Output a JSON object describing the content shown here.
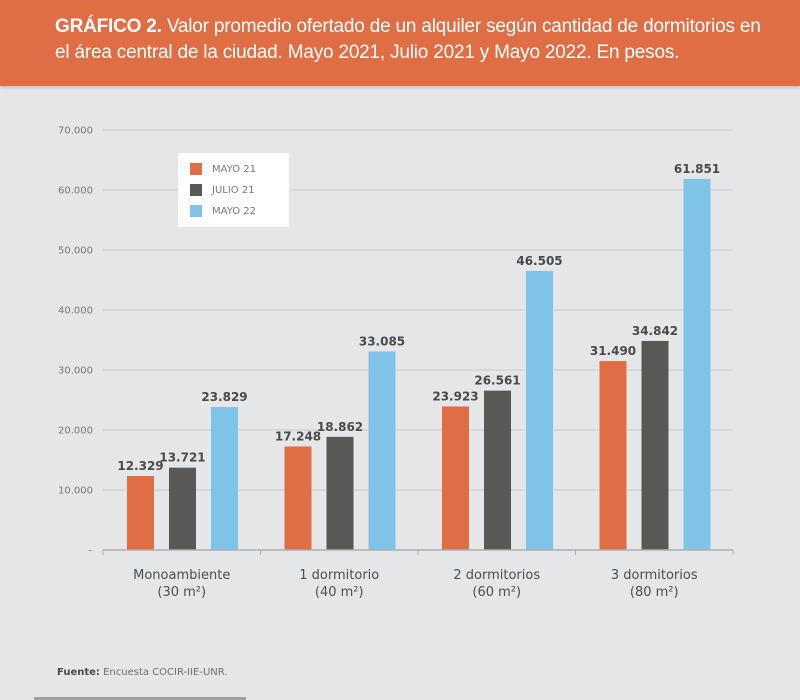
{
  "header": {
    "label": "GRÁFICO 2.",
    "title": "Valor promedio ofertado de un alquiler según cantidad de dormitorios en el área central de la ciudad. Mayo 2021, Julio 2021 y Mayo 2022. En pesos."
  },
  "source": {
    "label": "Fuente:",
    "text": "Encuesta COCIR-IIE-UNR."
  },
  "chart_data": {
    "type": "bar",
    "title": "GRÁFICO 2. Valor promedio ofertado de un alquiler según cantidad de dormitorios en el área central de la ciudad. Mayo 2021, Julio 2021 y Mayo 2022. En pesos.",
    "xlabel": "",
    "ylabel": "",
    "ylim": [
      0,
      70000
    ],
    "yticks": [
      0,
      10000,
      20000,
      30000,
      40000,
      50000,
      60000,
      70000
    ],
    "ytick_labels": [
      "-",
      "10.000",
      "20.000",
      "30.000",
      "40.000",
      "50.000",
      "60.000",
      "70.000"
    ],
    "grid": true,
    "legend_position": "top-left",
    "categories": [
      {
        "line1": "Monoambiente",
        "line2": "(30 m²)"
      },
      {
        "line1": "1 dormitorio",
        "line2": "(40 m²)"
      },
      {
        "line1": "2 dormitorios",
        "line2": "(60 m²)"
      },
      {
        "line1": "3 dormitorios",
        "line2": "(80 m²)"
      }
    ],
    "series": [
      {
        "name": "MAYO 21",
        "color": "#e06e45",
        "values": [
          12329,
          17248,
          23923,
          31490
        ],
        "labels": [
          "12.329",
          "17.248",
          "23.923",
          "31.490"
        ]
      },
      {
        "name": "JULIO 21",
        "color": "#585856",
        "values": [
          13721,
          18862,
          26561,
          34842
        ],
        "labels": [
          "13.721",
          "18.862",
          "26.561",
          "34.842"
        ]
      },
      {
        "name": "MAYO 22",
        "color": "#7fc4e8",
        "values": [
          23829,
          33085,
          46505,
          61851
        ],
        "labels": [
          "23.829",
          "33.085",
          "46.505",
          "61.851"
        ]
      }
    ]
  }
}
